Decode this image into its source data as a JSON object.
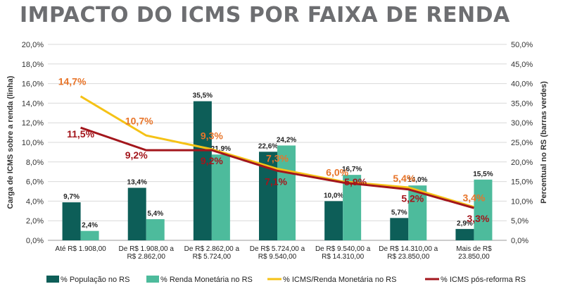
{
  "title": "IMPACTO DO ICMS POR FAIXA DE RENDA",
  "chart_data": {
    "type": "bar",
    "categories": [
      [
        "Até  R$ 1.908,00"
      ],
      [
        "De R$ 1.908,00 a",
        "R$ 2.862,00"
      ],
      [
        "De R$ 2.862,00 a",
        "R$ 5.724,00"
      ],
      [
        "De R$ 5.724,00 a",
        "R$ 9.540,00"
      ],
      [
        "De R$ 9.540,00 a",
        "R$ 14.310,00"
      ],
      [
        "De R$ 14.310,00 a",
        "R$ 23.850,00"
      ],
      [
        "Mais de R$",
        "23.850,00"
      ]
    ],
    "left_axis": {
      "label": "Carga de ICMS sobre a renda (linha)",
      "ylim": [
        0,
        20
      ],
      "ticks": [
        "0,0%",
        "2,0%",
        "4,0%",
        "6,0%",
        "8,0%",
        "10,0%",
        "12,0%",
        "14,0%",
        "16,0%",
        "18,0%",
        "20,0%"
      ]
    },
    "right_axis": {
      "label": "Percentual no RS (barras verdes)",
      "ylim": [
        0,
        50
      ],
      "ticks": [
        "0,0%",
        "5,0%",
        "10,0%",
        "15,0%",
        "20,0%",
        "25,0%",
        "30,0%",
        "35,0%",
        "40,0%",
        "45,0%",
        "50,0%"
      ]
    },
    "bars": [
      {
        "name": "% População no RS",
        "color": "#0d5e58",
        "values": [
          9.7,
          13.4,
          35.5,
          22.6,
          10.0,
          5.7,
          2.9
        ],
        "labels": [
          "9,7%",
          "13,4%",
          "35,5%",
          "22,6%",
          "10,0%",
          "5,7%",
          "2,9%"
        ]
      },
      {
        "name": "% Renda Monetária no RS",
        "color": "#4dbb9c",
        "values": [
          2.4,
          5.4,
          21.9,
          24.2,
          16.7,
          14.0,
          15.5
        ],
        "labels": [
          "2,4%",
          "5,4%",
          "21,9%",
          "24,2%",
          "16,7%",
          "14,0%",
          "15,5%"
        ]
      }
    ],
    "lines": [
      {
        "name": "% ICMS/Renda Monetária no RS",
        "color": "#f5c216",
        "label_color": "#e8752a",
        "values": [
          14.7,
          10.7,
          9.3,
          7.3,
          6.0,
          5.4,
          3.4
        ],
        "labels": [
          "14,7%",
          "10,7%",
          "9,3%",
          "7,3%",
          "6,0%",
          "5,4%",
          "3,4%"
        ]
      },
      {
        "name": "% ICMS pós-reforma RS",
        "color": "#a3161c",
        "label_color": "#a3161c",
        "values": [
          11.5,
          9.2,
          9.2,
          7.1,
          5.9,
          5.2,
          3.3
        ],
        "labels": [
          "11,5%",
          "9,2%",
          "9,2%",
          "7,1%",
          "5,9%",
          "5,2%",
          "3,3%"
        ]
      }
    ],
    "grid": true,
    "legend": "bottom"
  }
}
